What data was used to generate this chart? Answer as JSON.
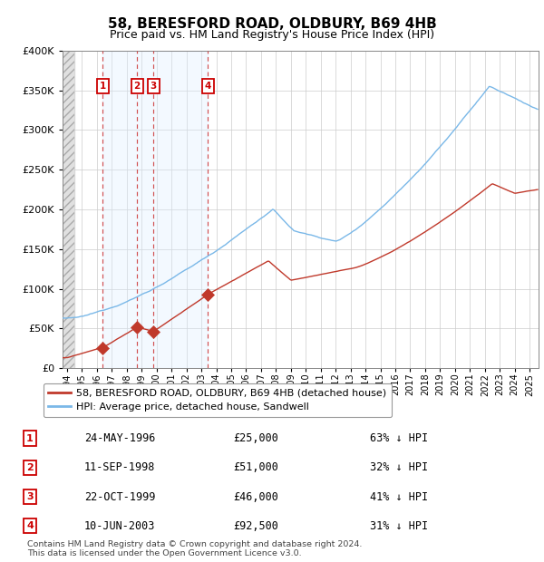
{
  "title": "58, BERESFORD ROAD, OLDBURY, B69 4HB",
  "subtitle": "Price paid vs. HM Land Registry's House Price Index (HPI)",
  "footer": "Contains HM Land Registry data © Crown copyright and database right 2024.\nThis data is licensed under the Open Government Licence v3.0.",
  "legend_line1": "58, BERESFORD ROAD, OLDBURY, B69 4HB (detached house)",
  "legend_line2": "HPI: Average price, detached house, Sandwell",
  "transactions": [
    {
      "num": 1,
      "date": "24-MAY-1996",
      "price": 25000,
      "pct": "63%",
      "year_x": 1996.38
    },
    {
      "num": 2,
      "date": "11-SEP-1998",
      "price": 51000,
      "pct": "32%",
      "year_x": 1998.69
    },
    {
      "num": 3,
      "date": "22-OCT-1999",
      "price": 46000,
      "pct": "41%",
      "year_x": 1999.8
    },
    {
      "num": 4,
      "date": "10-JUN-2003",
      "price": 92500,
      "pct": "31%",
      "year_x": 2003.44
    }
  ],
  "hpi_color": "#7ab8e8",
  "price_color": "#c0392b",
  "marker_color": "#c0392b",
  "dashed_color": "#cc3333",
  "shade_color": "#ddeeff",
  "grid_color": "#cccccc",
  "ylim": [
    0,
    400000
  ],
  "yticks": [
    0,
    50000,
    100000,
    150000,
    200000,
    250000,
    300000,
    350000,
    400000
  ],
  "xlim_start": 1993.7,
  "xlim_end": 2025.6,
  "xticks": [
    1994,
    1995,
    1996,
    1997,
    1998,
    1999,
    2000,
    2001,
    2002,
    2003,
    2004,
    2005,
    2006,
    2007,
    2008,
    2009,
    2010,
    2011,
    2012,
    2013,
    2014,
    2015,
    2016,
    2017,
    2018,
    2019,
    2020,
    2021,
    2022,
    2023,
    2024,
    2025
  ]
}
